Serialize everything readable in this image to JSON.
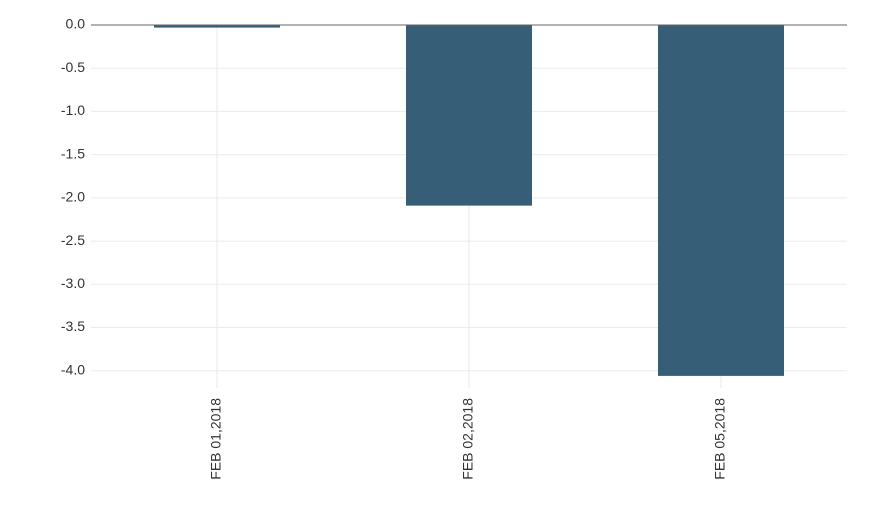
{
  "chart_data": {
    "type": "bar",
    "categories": [
      "FEB 01,2018",
      "FEB 02,2018",
      "FEB 05,2018"
    ],
    "values": [
      -0.03,
      -2.09,
      -4.06
    ],
    "color": "#375e77",
    "ylim": [
      -4.2,
      0
    ],
    "yticks": [
      {
        "value": 0,
        "label": "0.0"
      },
      -0.5,
      {
        "value": -1,
        "label": "-1.0"
      },
      -1.5,
      {
        "value": -2,
        "label": "-2.0"
      },
      -2.5,
      {
        "value": -3,
        "label": "-3.0"
      },
      -3.5,
      {
        "value": -4,
        "label": "-4.0"
      }
    ],
    "grid": true
  }
}
